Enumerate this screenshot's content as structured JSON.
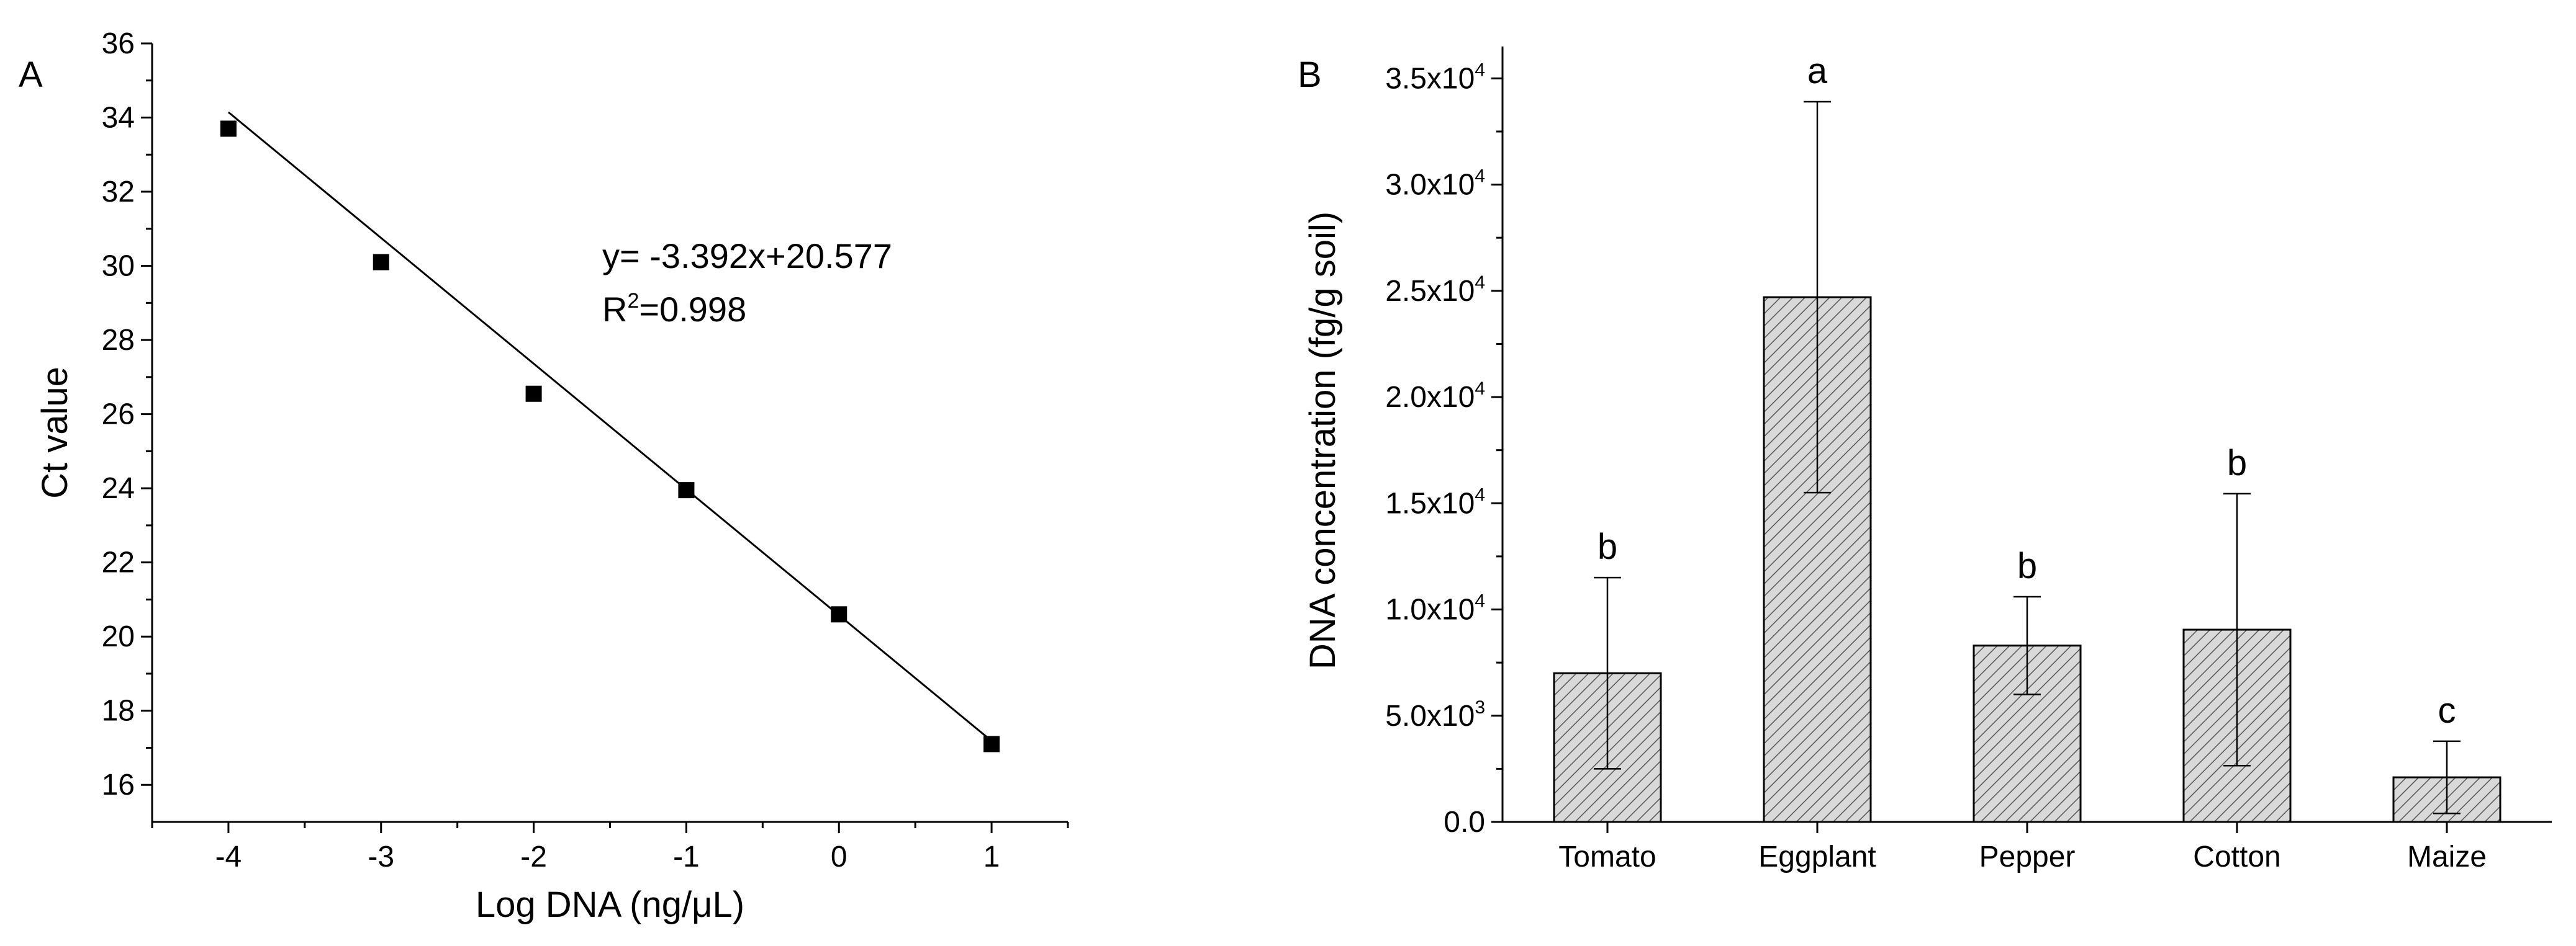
{
  "chart_data": [
    {
      "panel": "A",
      "type": "scatter",
      "title": "",
      "xlabel": "Log DNA (ng/μL)",
      "ylabel": "Ct value",
      "xlim": [
        -4.5,
        1.5
      ],
      "ylim": [
        15,
        36
      ],
      "xticks": [
        -4,
        -3,
        -2,
        -1,
        0,
        1
      ],
      "xtick_labels": [
        "-4",
        "-3",
        "-2",
        "-1",
        "0",
        "1"
      ],
      "yticks": [
        16,
        18,
        20,
        22,
        24,
        26,
        28,
        30,
        32,
        34,
        36
      ],
      "ytick_labels": [
        "16",
        "18",
        "20",
        "22",
        "24",
        "26",
        "28",
        "30",
        "32",
        "34",
        "36"
      ],
      "x": [
        -4,
        -3,
        -2,
        -1,
        0,
        1
      ],
      "y": [
        33.7,
        30.1,
        26.55,
        23.95,
        20.6,
        17.1
      ],
      "fit": {
        "slope": -3.392,
        "intercept": 20.577,
        "x_range": [
          -4,
          1
        ]
      },
      "equation_line1": "y= -3.392x+20.577",
      "r2_prefix": "R",
      "r2_sup": "2",
      "r2_value": "=0.998"
    },
    {
      "panel": "B",
      "type": "bar",
      "title": "",
      "xlabel": "",
      "ylabel": "DNA concentration (fg/g soil)",
      "ylim": [
        0,
        36500
      ],
      "categories": [
        "Tomato",
        "Eggplant",
        "Pepper",
        "Cotton",
        "Maize"
      ],
      "values": [
        7000,
        24700,
        8300,
        9050,
        2100
      ],
      "errors": [
        4500,
        9200,
        2300,
        6400,
        1700
      ],
      "significance": [
        "b",
        "a",
        "b",
        "b",
        "c"
      ],
      "yticks": [
        0,
        5000,
        10000,
        15000,
        20000,
        25000,
        30000,
        35000
      ],
      "ytick_labels": [
        {
          "mantissa": "0.0",
          "exp": ""
        },
        {
          "mantissa": "5.0x10",
          "exp": "3"
        },
        {
          "mantissa": "1.0x10",
          "exp": "4"
        },
        {
          "mantissa": "1.5x10",
          "exp": "4"
        },
        {
          "mantissa": "2.0x10",
          "exp": "4"
        },
        {
          "mantissa": "2.5x10",
          "exp": "4"
        },
        {
          "mantissa": "3.0x10",
          "exp": "4"
        },
        {
          "mantissa": "3.5x10",
          "exp": "4"
        }
      ],
      "bar_fill": "#d9d9d9",
      "bar_hatch": "#444444"
    }
  ]
}
